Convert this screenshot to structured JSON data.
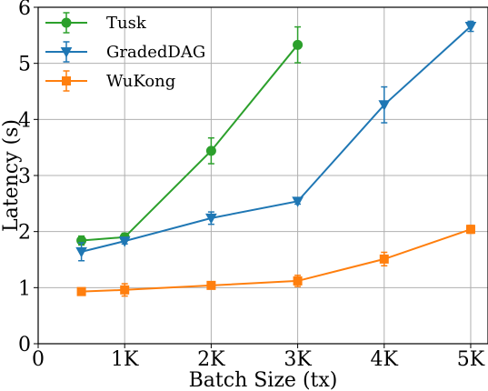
{
  "chart_data": {
    "type": "line",
    "title": "",
    "xlabel": "Batch Size (tx)",
    "ylabel": "Latency (s)",
    "xlim": [
      0,
      5200
    ],
    "ylim": [
      0,
      6
    ],
    "x_ticks": [
      0,
      1000,
      2000,
      3000,
      4000,
      5000
    ],
    "x_tick_labels": [
      "0",
      "1K",
      "2K",
      "3K",
      "4K",
      "5K"
    ],
    "y_ticks": [
      0,
      1,
      2,
      3,
      4,
      5,
      6
    ],
    "y_tick_labels": [
      "0",
      "1",
      "2",
      "3",
      "4",
      "5",
      "6"
    ],
    "grid": true,
    "legend_position": "top-left",
    "series": [
      {
        "name": "Tusk",
        "color": "#2ca02c",
        "marker": "circle",
        "x": [
          500,
          1000,
          2000,
          3000
        ],
        "y": [
          1.84,
          1.9,
          3.44,
          5.33
        ],
        "err": [
          0.08,
          0.07,
          0.23,
          0.32
        ]
      },
      {
        "name": "GradedDAG",
        "color": "#1f77b4",
        "marker": "triangle-down",
        "x": [
          500,
          1000,
          2000,
          3000,
          4000,
          5000
        ],
        "y": [
          1.64,
          1.83,
          2.24,
          2.54,
          4.26,
          5.66
        ],
        "err": [
          0.16,
          0.05,
          0.11,
          0.05,
          0.32,
          0.09
        ]
      },
      {
        "name": "WuKong",
        "color": "#ff7f0e",
        "marker": "square",
        "x": [
          500,
          1000,
          2000,
          3000,
          4000,
          5000
        ],
        "y": [
          0.93,
          0.96,
          1.04,
          1.12,
          1.51,
          2.04
        ],
        "err": [
          0.04,
          0.11,
          0.04,
          0.1,
          0.12,
          0.07
        ]
      }
    ]
  }
}
